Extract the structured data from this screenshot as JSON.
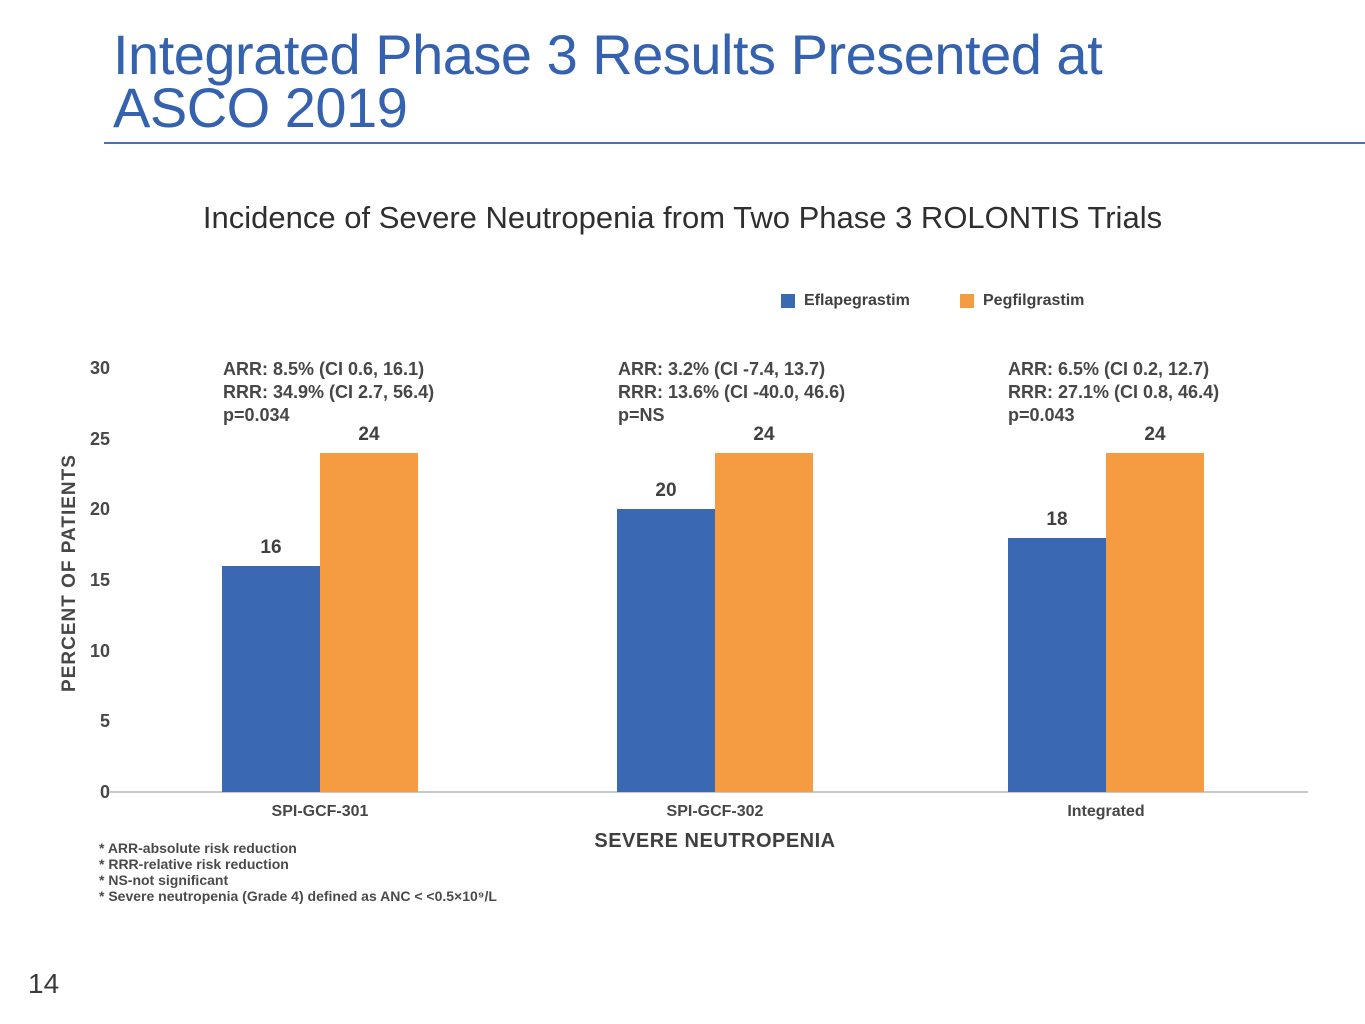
{
  "slide": {
    "title": "Integrated Phase 3 Results Presented at ASCO 2019",
    "page_number": "14"
  },
  "colors": {
    "title_blue": "#3462ae",
    "bar_blue": "#3a68b2",
    "bar_orange": "#f59c42",
    "text_dark": "#474747",
    "baseline_gray": "#c9c9c9"
  },
  "chart_data": {
    "type": "bar",
    "title": "Incidence of Severe Neutropenia from Two Phase 3 ROLONTIS Trials",
    "xlabel": "SEVERE NEUTROPENIA",
    "ylabel": "PERCENT OF PATIENTS",
    "ylim": [
      0,
      30
    ],
    "yticks": [
      0,
      5,
      10,
      15,
      20,
      25,
      30
    ],
    "grid": false,
    "legend_position": "top-right",
    "categories": [
      "SPI-GCF-301",
      "SPI-GCF-302",
      "Integrated"
    ],
    "series": [
      {
        "name": "Eflapegrastim",
        "color": "#3a68b2",
        "values": [
          16,
          20,
          18
        ]
      },
      {
        "name": "Pegfilgrastim",
        "color": "#f59c42",
        "values": [
          24,
          24,
          24
        ]
      }
    ],
    "annotations": [
      {
        "line1": "ARR: 8.5% (CI 0.6, 16.1)",
        "line2": "RRR: 34.9% (CI 2.7, 56.4)",
        "line3": "p=0.034"
      },
      {
        "line1": "ARR: 3.2% (CI -7.4, 13.7)",
        "line2": "RRR: 13.6% (CI -40.0, 46.6)",
        "line3": "p=NS"
      },
      {
        "line1": "ARR: 6.5% (CI 0.2, 12.7)",
        "line2": "RRR: 27.1% (CI 0.8, 46.4)",
        "line3": "p=0.043"
      }
    ]
  },
  "footnotes": {
    "line1": "* ARR-absolute risk reduction",
    "line2": "* RRR-relative risk reduction",
    "line3": "* NS-not significant",
    "line4": "* Severe neutropenia (Grade 4) defined as ANC < <0.5×10⁹/L"
  }
}
